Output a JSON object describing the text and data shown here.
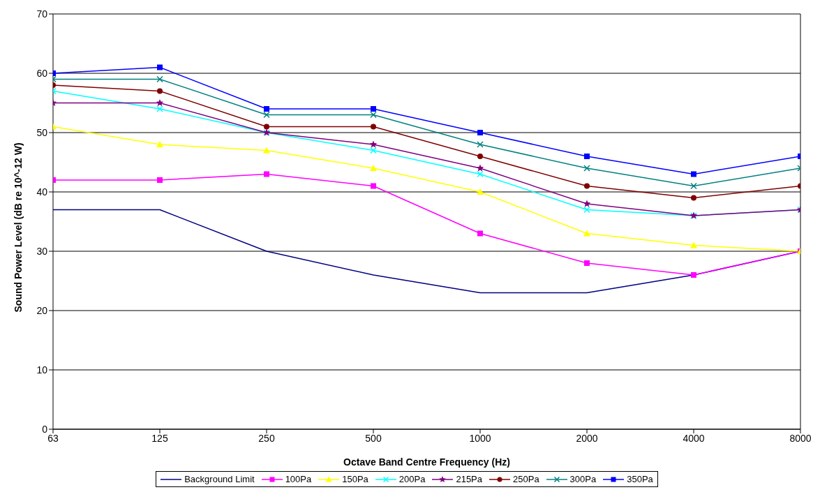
{
  "chart_data": {
    "type": "line",
    "xlabel": "Octave Band Centre Frequency (Hz)",
    "ylabel": "Sound Power Level (dB re 10^-12 W)",
    "categories": [
      "63",
      "125",
      "250",
      "500",
      "1000",
      "2000",
      "4000",
      "8000"
    ],
    "ylim": [
      0,
      70
    ],
    "yticks": [
      0,
      10,
      20,
      30,
      40,
      50,
      60,
      70
    ],
    "grid": "y",
    "legend": "bottom",
    "line_style": "solid",
    "series": [
      {
        "name": "Background Limit",
        "color": "#000080",
        "marker": "none",
        "values": [
          37,
          37,
          30,
          26,
          23,
          23,
          26,
          30
        ]
      },
      {
        "name": "100Pa",
        "color": "#ff00ff",
        "marker": "square",
        "values": [
          42,
          42,
          43,
          41,
          33,
          28,
          26,
          30
        ]
      },
      {
        "name": "150Pa",
        "color": "#ffff00",
        "marker": "triangle",
        "values": [
          51,
          48,
          47,
          44,
          40,
          33,
          31,
          30
        ]
      },
      {
        "name": "200Pa",
        "color": "#00ffff",
        "marker": "cross",
        "values": [
          57,
          54,
          50,
          47,
          43,
          37,
          36,
          37
        ]
      },
      {
        "name": "215Pa",
        "color": "#800080",
        "marker": "star",
        "values": [
          55,
          55,
          50,
          48,
          44,
          38,
          36,
          37
        ]
      },
      {
        "name": "250Pa",
        "color": "#800000",
        "marker": "circle",
        "values": [
          58,
          57,
          51,
          51,
          46,
          41,
          39,
          41
        ]
      },
      {
        "name": "300Pa",
        "color": "#008080",
        "marker": "cross",
        "values": [
          59,
          59,
          53,
          53,
          48,
          44,
          41,
          44
        ]
      },
      {
        "name": "350Pa",
        "color": "#0000ff",
        "marker": "square",
        "values": [
          60,
          61,
          54,
          54,
          50,
          46,
          43,
          46
        ]
      }
    ]
  }
}
